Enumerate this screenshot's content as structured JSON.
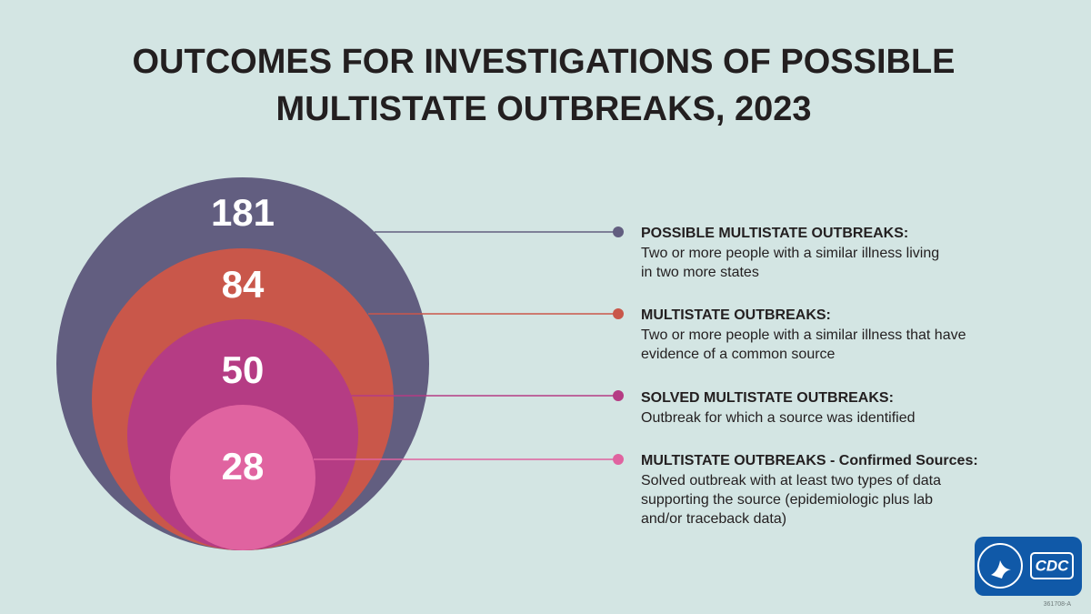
{
  "header": {
    "title": [
      "OUTCOMES FOR INVESTIGATIONS OF POSSIBLE",
      "MULTISTATE OUTBREAKS, 2023"
    ]
  },
  "items": [
    {
      "number": "181",
      "heading": "POSSIBLE MULTISTATE OUTBREAKS:",
      "description": [
        "Two or more people with a similar illness living",
        "in two more states"
      ],
      "color": "#625e80"
    },
    {
      "number": "84",
      "heading": "MULTISTATE OUTBREAKS:",
      "description": [
        "Two or more people with a similar illness that have",
        "evidence of a common source"
      ],
      "color": "#c9574a"
    },
    {
      "number": "50",
      "heading": "SOLVED MULTISTATE OUTBREAKS:",
      "description": [
        "Outbreak for which a source was identified"
      ],
      "color": "#b53c84"
    },
    {
      "number": "28",
      "heading": "MULTISTATE OUTBREAKS - Confirmed Sources:",
      "description": [
        "Solved outbreak with at least two types of data",
        "supporting the source (epidemiologic plus lab",
        "and/or traceback data)"
      ],
      "color": "#e063a0"
    }
  ],
  "footer": {
    "logo": "CDC",
    "code": "361708-A"
  }
}
